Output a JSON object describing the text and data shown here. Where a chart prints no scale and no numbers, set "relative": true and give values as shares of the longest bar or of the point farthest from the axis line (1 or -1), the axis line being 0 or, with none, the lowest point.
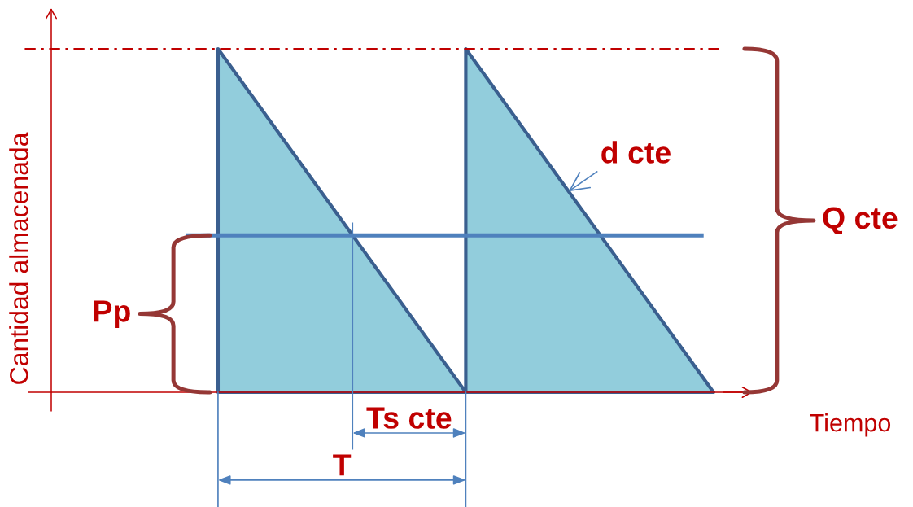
{
  "chart_data": {
    "type": "area",
    "relative": true,
    "ylabel": "Cantidad almacenada",
    "xlabel": "Tiempo",
    "categories": [
      null,
      null,
      null
    ],
    "series": [
      {
        "color": "#92cddc",
        "values": [
          1,
          0,
          null
        ]
      },
      {
        "color": "#92cddc",
        "values": [
          null,
          1,
          0
        ]
      }
    ],
    "ref_lines": [
      {
        "axis": "y",
        "value": 0.457,
        "label": "Pp",
        "color": "#4f81bd"
      },
      {
        "axis": "y",
        "value": 1,
        "label": "Q cte",
        "color": "#c00000",
        "line_style": "dashdot"
      }
    ],
    "annotations": [
      "d cte",
      "Ts cte",
      "T"
    ]
  }
}
